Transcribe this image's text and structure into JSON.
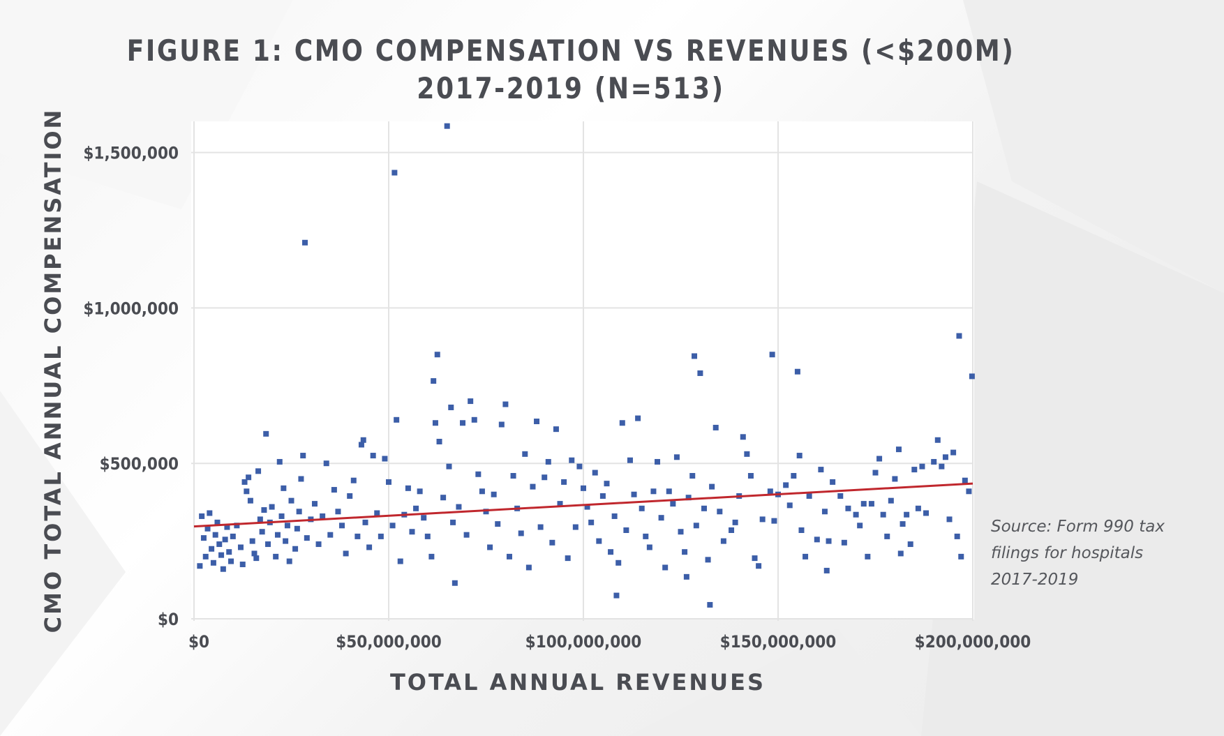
{
  "header": {
    "title_line1": "FIGURE 1: CMO COMPENSATION VS REVENUES (<$200M)",
    "title_line2": "2017-2019 (N=513)"
  },
  "source_note": {
    "line1": "Source: Form 990 tax",
    "line2": "filings for hospitals",
    "line3": "2017-2019"
  },
  "colors": {
    "points": "#3c5ea8",
    "trendline": "#c0272d",
    "grid": "#e3e3e3",
    "text": "#4a4c52"
  },
  "chart_data": {
    "type": "scatter",
    "title": "FIGURE 1: CMO COMPENSATION VS REVENUES (<$200M) 2017-2019 (N=513)",
    "xlabel": "TOTAL ANNUAL REVENUES",
    "ylabel": "CMO TOTAL ANNUAL COMPENSATION",
    "xlim": [
      0,
      200000000
    ],
    "ylim": [
      0,
      1600000
    ],
    "x_ticks": [
      0,
      50000000,
      100000000,
      150000000,
      200000000
    ],
    "x_tick_labels": [
      "$0",
      "$50,000,000",
      "$100,000,000",
      "$150,000,000",
      "$200,000,000"
    ],
    "y_ticks": [
      0,
      500000,
      1000000,
      1500000
    ],
    "y_tick_labels": [
      "$0",
      "$500,000",
      "$1,000,000",
      "$1,500,000"
    ],
    "grid": true,
    "legend": "none",
    "trendline": {
      "type": "linear",
      "x": [
        0,
        200000000
      ],
      "y": [
        297000,
        435000
      ]
    },
    "series": [
      {
        "points": [
          [
            1500000,
            170000
          ],
          [
            2000000,
            330000
          ],
          [
            2500000,
            260000
          ],
          [
            3000000,
            200000
          ],
          [
            3500000,
            290000
          ],
          [
            4000000,
            340000
          ],
          [
            4500000,
            225000
          ],
          [
            5000000,
            180000
          ],
          [
            5500000,
            270000
          ],
          [
            6000000,
            310000
          ],
          [
            6500000,
            240000
          ],
          [
            7000000,
            205000
          ],
          [
            7500000,
            160000
          ],
          [
            8000000,
            255000
          ],
          [
            8500000,
            295000
          ],
          [
            9000000,
            215000
          ],
          [
            9500000,
            185000
          ],
          [
            10000000,
            265000
          ],
          [
            11000000,
            300000
          ],
          [
            12000000,
            230000
          ],
          [
            12500000,
            175000
          ],
          [
            13000000,
            440000
          ],
          [
            13500000,
            410000
          ],
          [
            14000000,
            455000
          ],
          [
            14500000,
            380000
          ],
          [
            15000000,
            250000
          ],
          [
            15500000,
            210000
          ],
          [
            16000000,
            195000
          ],
          [
            16500000,
            475000
          ],
          [
            17000000,
            320000
          ],
          [
            17500000,
            280000
          ],
          [
            18000000,
            350000
          ],
          [
            18500000,
            595000
          ],
          [
            19000000,
            240000
          ],
          [
            19500000,
            310000
          ],
          [
            20000000,
            360000
          ],
          [
            21000000,
            200000
          ],
          [
            21500000,
            270000
          ],
          [
            22000000,
            505000
          ],
          [
            22500000,
            330000
          ],
          [
            23000000,
            420000
          ],
          [
            23500000,
            250000
          ],
          [
            24000000,
            300000
          ],
          [
            24500000,
            185000
          ],
          [
            25000000,
            380000
          ],
          [
            26000000,
            225000
          ],
          [
            26500000,
            290000
          ],
          [
            27000000,
            345000
          ],
          [
            27500000,
            450000
          ],
          [
            28000000,
            525000
          ],
          [
            28500000,
            1210000
          ],
          [
            29000000,
            260000
          ],
          [
            30000000,
            320000
          ],
          [
            31000000,
            370000
          ],
          [
            32000000,
            240000
          ],
          [
            33000000,
            330000
          ],
          [
            34000000,
            500000
          ],
          [
            35000000,
            270000
          ],
          [
            36000000,
            415000
          ],
          [
            37000000,
            345000
          ],
          [
            38000000,
            300000
          ],
          [
            39000000,
            210000
          ],
          [
            40000000,
            395000
          ],
          [
            41000000,
            445000
          ],
          [
            42000000,
            265000
          ],
          [
            43000000,
            560000
          ],
          [
            43500000,
            575000
          ],
          [
            44000000,
            310000
          ],
          [
            45000000,
            230000
          ],
          [
            46000000,
            525000
          ],
          [
            47000000,
            340000
          ],
          [
            48000000,
            265000
          ],
          [
            49000000,
            515000
          ],
          [
            50000000,
            440000
          ],
          [
            51000000,
            300000
          ],
          [
            51500000,
            1435000
          ],
          [
            52000000,
            640000
          ],
          [
            53000000,
            185000
          ],
          [
            54000000,
            335000
          ],
          [
            55000000,
            420000
          ],
          [
            56000000,
            280000
          ],
          [
            57000000,
            355000
          ],
          [
            58000000,
            410000
          ],
          [
            59000000,
            325000
          ],
          [
            60000000,
            265000
          ],
          [
            61000000,
            200000
          ],
          [
            61500000,
            765000
          ],
          [
            62000000,
            630000
          ],
          [
            62500000,
            850000
          ],
          [
            63000000,
            570000
          ],
          [
            64000000,
            390000
          ],
          [
            65000000,
            1585000
          ],
          [
            65500000,
            490000
          ],
          [
            66000000,
            680000
          ],
          [
            66500000,
            310000
          ],
          [
            67000000,
            115000
          ],
          [
            68000000,
            360000
          ],
          [
            69000000,
            630000
          ],
          [
            70000000,
            270000
          ],
          [
            71000000,
            700000
          ],
          [
            72000000,
            640000
          ],
          [
            73000000,
            465000
          ],
          [
            74000000,
            410000
          ],
          [
            75000000,
            345000
          ],
          [
            76000000,
            230000
          ],
          [
            77000000,
            400000
          ],
          [
            78000000,
            305000
          ],
          [
            79000000,
            625000
          ],
          [
            80000000,
            690000
          ],
          [
            81000000,
            200000
          ],
          [
            82000000,
            460000
          ],
          [
            83000000,
            355000
          ],
          [
            84000000,
            275000
          ],
          [
            85000000,
            530000
          ],
          [
            86000000,
            165000
          ],
          [
            87000000,
            425000
          ],
          [
            88000000,
            635000
          ],
          [
            89000000,
            295000
          ],
          [
            90000000,
            455000
          ],
          [
            91000000,
            505000
          ],
          [
            92000000,
            245000
          ],
          [
            93000000,
            610000
          ],
          [
            94000000,
            370000
          ],
          [
            95000000,
            440000
          ],
          [
            96000000,
            195000
          ],
          [
            97000000,
            510000
          ],
          [
            98000000,
            295000
          ],
          [
            99000000,
            490000
          ],
          [
            100000000,
            420000
          ],
          [
            101000000,
            360000
          ],
          [
            102000000,
            310000
          ],
          [
            103000000,
            470000
          ],
          [
            104000000,
            250000
          ],
          [
            105000000,
            395000
          ],
          [
            106000000,
            435000
          ],
          [
            107000000,
            215000
          ],
          [
            108000000,
            330000
          ],
          [
            108500000,
            75000
          ],
          [
            109000000,
            180000
          ],
          [
            110000000,
            630000
          ],
          [
            111000000,
            285000
          ],
          [
            112000000,
            510000
          ],
          [
            113000000,
            400000
          ],
          [
            114000000,
            645000
          ],
          [
            115000000,
            355000
          ],
          [
            116000000,
            265000
          ],
          [
            117000000,
            230000
          ],
          [
            118000000,
            410000
          ],
          [
            119000000,
            505000
          ],
          [
            120000000,
            325000
          ],
          [
            121000000,
            165000
          ],
          [
            122000000,
            410000
          ],
          [
            123000000,
            370000
          ],
          [
            124000000,
            520000
          ],
          [
            125000000,
            280000
          ],
          [
            126000000,
            215000
          ],
          [
            126500000,
            135000
          ],
          [
            127000000,
            390000
          ],
          [
            128000000,
            460000
          ],
          [
            128500000,
            845000
          ],
          [
            129000000,
            300000
          ],
          [
            130000000,
            790000
          ],
          [
            131000000,
            355000
          ],
          [
            132000000,
            190000
          ],
          [
            132500000,
            45000
          ],
          [
            133000000,
            425000
          ],
          [
            134000000,
            615000
          ],
          [
            135000000,
            345000
          ],
          [
            136000000,
            250000
          ],
          [
            138000000,
            285000
          ],
          [
            139000000,
            310000
          ],
          [
            140000000,
            395000
          ],
          [
            141000000,
            585000
          ],
          [
            142000000,
            530000
          ],
          [
            143000000,
            460000
          ],
          [
            144000000,
            195000
          ],
          [
            145000000,
            170000
          ],
          [
            146000000,
            320000
          ],
          [
            148000000,
            410000
          ],
          [
            148500000,
            850000
          ],
          [
            149000000,
            315000
          ],
          [
            150000000,
            400000
          ],
          [
            152000000,
            430000
          ],
          [
            153000000,
            365000
          ],
          [
            154000000,
            460000
          ],
          [
            155000000,
            795000
          ],
          [
            155500000,
            525000
          ],
          [
            156000000,
            285000
          ],
          [
            157000000,
            200000
          ],
          [
            158000000,
            395000
          ],
          [
            160000000,
            255000
          ],
          [
            161000000,
            480000
          ],
          [
            162000000,
            345000
          ],
          [
            162500000,
            155000
          ],
          [
            163000000,
            250000
          ],
          [
            164000000,
            440000
          ],
          [
            166000000,
            395000
          ],
          [
            167000000,
            245000
          ],
          [
            168000000,
            355000
          ],
          [
            170000000,
            335000
          ],
          [
            171000000,
            300000
          ],
          [
            172000000,
            370000
          ],
          [
            173000000,
            200000
          ],
          [
            174000000,
            370000
          ],
          [
            175000000,
            470000
          ],
          [
            176000000,
            515000
          ],
          [
            177000000,
            335000
          ],
          [
            178000000,
            265000
          ],
          [
            179000000,
            380000
          ],
          [
            180000000,
            450000
          ],
          [
            181000000,
            545000
          ],
          [
            181500000,
            210000
          ],
          [
            182000000,
            305000
          ],
          [
            183000000,
            335000
          ],
          [
            184000000,
            240000
          ],
          [
            185000000,
            480000
          ],
          [
            186000000,
            355000
          ],
          [
            187000000,
            490000
          ],
          [
            188000000,
            340000
          ],
          [
            190000000,
            505000
          ],
          [
            191000000,
            575000
          ],
          [
            192000000,
            490000
          ],
          [
            193000000,
            520000
          ],
          [
            194000000,
            320000
          ],
          [
            195000000,
            535000
          ],
          [
            196000000,
            265000
          ],
          [
            196500000,
            910000
          ],
          [
            197000000,
            200000
          ],
          [
            198000000,
            445000
          ],
          [
            199000000,
            410000
          ],
          [
            199800000,
            780000
          ]
        ]
      }
    ]
  }
}
